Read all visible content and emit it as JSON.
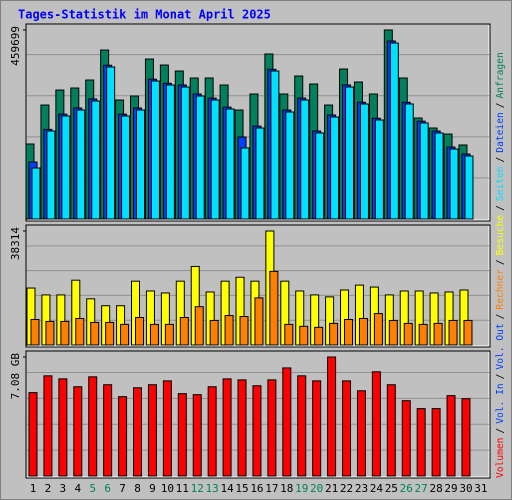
{
  "title": "Tages-Statistik im Monat April 2025",
  "legend_separator": "/",
  "categories": [
    "1",
    "2",
    "3",
    "4",
    "5",
    "6",
    "7",
    "8",
    "9",
    "10",
    "11",
    "12",
    "13",
    "14",
    "15",
    "16",
    "17",
    "18",
    "19",
    "20",
    "21",
    "22",
    "23",
    "24",
    "25",
    "26",
    "27",
    "28",
    "29",
    "30",
    "31"
  ],
  "category_colors": [
    "#000000",
    "#000000",
    "#000000",
    "#000000",
    "#008060",
    "#008060",
    "#000000",
    "#000000",
    "#000000",
    "#000000",
    "#000000",
    "#008060",
    "#008060",
    "#000000",
    "#000000",
    "#000000",
    "#000000",
    "#000000",
    "#008060",
    "#008060",
    "#000000",
    "#000000",
    "#000000",
    "#000000",
    "#000000",
    "#008060",
    "#008060",
    "#000000",
    "#000000",
    "#000000",
    "#000000"
  ],
  "chart_data": [
    {
      "type": "bar",
      "ylim": [
        0,
        459699
      ],
      "yticks": [
        459699
      ],
      "series": [
        {
          "name": "Anfragen",
          "color": "#00805c",
          "values": [
            182400,
            277200,
            313700,
            318600,
            338000,
            411000,
            289400,
            299100,
            389100,
            374500,
            359900,
            342900,
            342900,
            325900,
            265100,
            304000,
            401300,
            304000,
            347800,
            328300,
            277200,
            364800,
            333200,
            304000,
            459699,
            342900,
            245600,
            221300,
            206700,
            180000,
            null
          ]
        },
        {
          "name": "Dateien",
          "color": "#0040ff",
          "values": [
            138600,
            218000,
            255000,
            270000,
            292000,
            374000,
            255000,
            270000,
            340000,
            330000,
            326000,
            304000,
            294000,
            272000,
            199400,
            226000,
            364000,
            265000,
            294000,
            214000,
            253000,
            326000,
            284000,
            245000,
            433000,
            284000,
            238000,
            214000,
            175000,
            158000,
            null
          ]
        },
        {
          "name": "Seiten",
          "color": "#00e0ff",
          "values": [
            124000,
            214000,
            250500,
            265100,
            287000,
            369700,
            250500,
            265100,
            335600,
            325900,
            321000,
            299100,
            289400,
            267500,
            172700,
            221300,
            359900,
            260200,
            289400,
            209200,
            248100,
            321000,
            279700,
            240800,
            428000,
            279700,
            233500,
            209200,
            170200,
            153200,
            null
          ]
        }
      ]
    },
    {
      "type": "bar",
      "ylim": [
        0,
        38314
      ],
      "yticks": [
        38314
      ],
      "series": [
        {
          "name": "Besuche",
          "color": "#ffff00",
          "values": [
            19140,
            16830,
            16830,
            21780,
            15510,
            13200,
            13200,
            21450,
            18150,
            17490,
            21450,
            26400,
            17820,
            21450,
            22770,
            21450,
            38314,
            21450,
            18150,
            16830,
            16170,
            18480,
            20130,
            19470,
            16830,
            18150,
            18150,
            17490,
            17820,
            18480,
            null
          ]
        },
        {
          "name": "Rechner",
          "color": "#ff8000",
          "values": [
            8580,
            7920,
            7920,
            8910,
            7590,
            7590,
            6930,
            9240,
            6930,
            6930,
            9240,
            12870,
            8250,
            9900,
            9570,
            15840,
            24750,
            6930,
            6270,
            5940,
            7260,
            8580,
            8910,
            10560,
            8250,
            7260,
            6930,
            7260,
            8250,
            8250,
            null
          ]
        }
      ]
    },
    {
      "type": "bar",
      "ylim": [
        0,
        7.08
      ],
      "yticks": [
        {
          "value": 7.08,
          "label": "7.08 GB"
        }
      ],
      "series": [
        {
          "name": "Volumen",
          "color": "#ff0000",
          "values": [
            4.96,
            5.96,
            5.78,
            5.31,
            5.9,
            5.43,
            4.72,
            5.25,
            5.43,
            5.66,
            4.9,
            4.84,
            5.31,
            5.78,
            5.72,
            5.37,
            5.72,
            6.43,
            5.96,
            5.66,
            7.08,
            5.66,
            5.07,
            6.2,
            5.43,
            4.48,
            4.01,
            4.01,
            4.78,
            4.6,
            null
          ]
        }
      ],
      "legend_entries": [
        {
          "name": "Vol. In",
          "color": "#0040ff"
        },
        {
          "name": "Vol. Out",
          "color": "#0040ff"
        }
      ]
    }
  ]
}
